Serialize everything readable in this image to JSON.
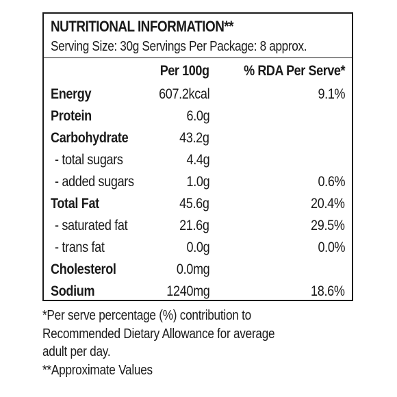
{
  "label": {
    "title": "NUTRITIONAL INFORMATION**",
    "serving_info": "Serving Size: 30g  Servings Per Package: 8 approx.",
    "headers": {
      "per_100g": "Per 100g",
      "rda_per_serve": "% RDA Per Serve*"
    },
    "rows": [
      {
        "label": "Energy",
        "per_100g": "607.2kcal",
        "rda": "9.1%"
      },
      {
        "label": "Protein",
        "per_100g": "6.0g",
        "rda": ""
      },
      {
        "label": "Carbohydrate",
        "per_100g": "43.2g",
        "rda": ""
      },
      {
        "label": "- total sugars",
        "per_100g": "4.4g",
        "rda": ""
      },
      {
        "label": "- added sugars",
        "per_100g": "1.0g",
        "rda": "0.6%"
      },
      {
        "label": "Total Fat",
        "per_100g": "45.6g",
        "rda": "20.4%"
      },
      {
        "label": "- saturated fat",
        "per_100g": "21.6g",
        "rda": "29.5%"
      },
      {
        "label": "- trans fat",
        "per_100g": "0.0g",
        "rda": "0.0%"
      },
      {
        "label": "Cholesterol",
        "per_100g": "0.0mg",
        "rda": ""
      },
      {
        "label": "Sodium",
        "per_100g": "1240mg",
        "rda": "18.6%"
      }
    ]
  },
  "footnotes": [
    "*Per serve percentage (%) contribution to",
    "Recommended Dietary Allowance for average",
    "adult per day.",
    "**Approximate Values"
  ]
}
